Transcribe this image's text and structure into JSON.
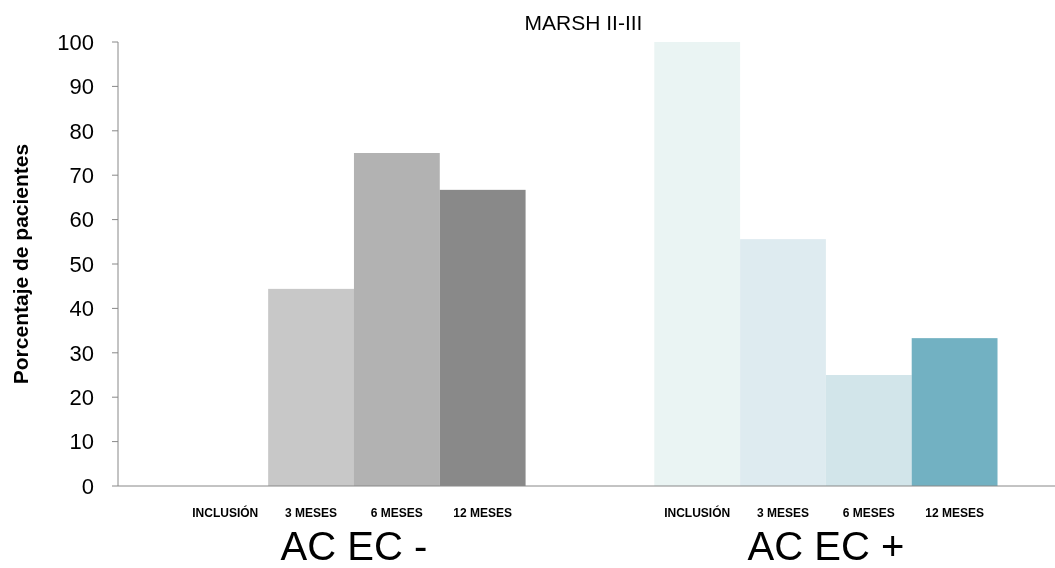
{
  "chart_data": {
    "type": "bar",
    "title": "MARSH II-III",
    "ylabel": "Porcentaje de pacientes",
    "categories": [
      "INCLUSIÓN",
      "3 MESES",
      "6 MESES",
      "12 MESES",
      "INCLUSIÓN",
      "3 MESES",
      "6 MESES",
      "12 MESES"
    ],
    "values": [
      0,
      44.4,
      75,
      66.7,
      100,
      55.6,
      25,
      33.3
    ],
    "colors": [
      "#d9d9d9",
      "#c8c8c8",
      "#b2b2b2",
      "#898989",
      "#eaf4f3",
      "#deebf0",
      "#d2e5ea",
      "#72b1c2"
    ],
    "ylim": [
      0,
      100
    ],
    "yticks": [
      0,
      10,
      20,
      30,
      40,
      50,
      60,
      70,
      80,
      90,
      100
    ],
    "grid": false,
    "annotations": [
      "AC EC -",
      "AC EC +"
    ]
  }
}
